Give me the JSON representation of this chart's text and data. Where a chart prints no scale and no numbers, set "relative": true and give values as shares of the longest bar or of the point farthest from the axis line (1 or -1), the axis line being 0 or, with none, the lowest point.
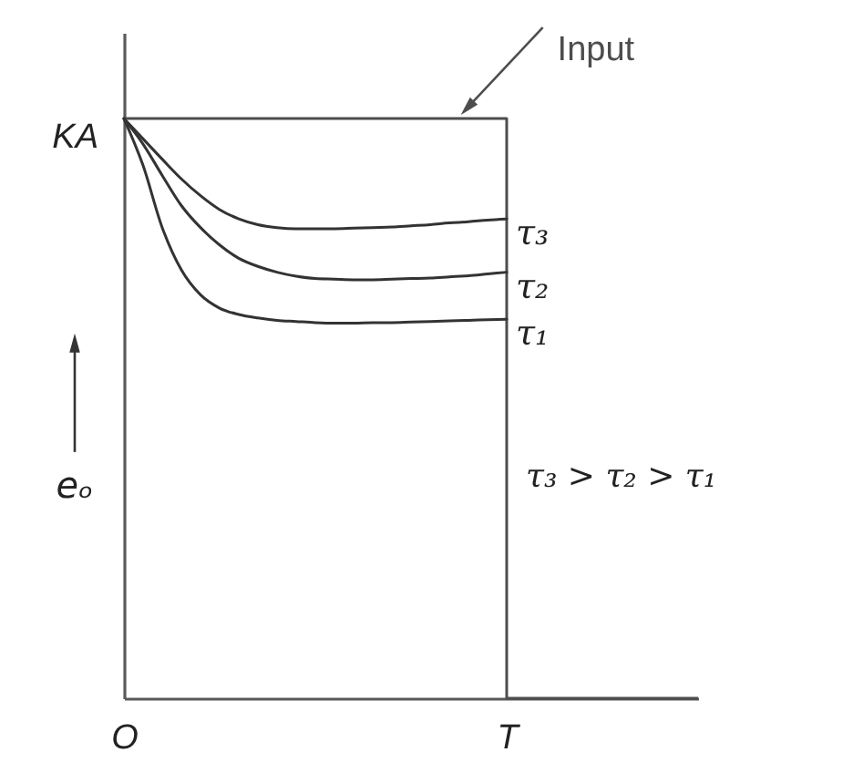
{
  "chart_data": {
    "type": "line",
    "relative": true,
    "ylabel": "eₒ",
    "legend": false,
    "categories": [
      "O",
      null,
      null,
      null,
      null,
      null,
      null,
      null,
      null,
      null,
      null,
      null,
      null,
      null,
      null,
      null,
      null,
      null,
      null,
      null,
      "T",
      null,
      null,
      null,
      null,
      null,
      null,
      null,
      null,
      null,
      null
    ],
    "annotations": [
      {
        "text": "KA",
        "x": "O",
        "y": 1
      },
      "τ₃ > τ₂ > τ₁"
    ],
    "series": [
      {
        "name": "Input",
        "type": "step",
        "color": "#4d4d4d",
        "values": [
          1,
          1,
          1,
          1,
          1,
          1,
          1,
          1,
          1,
          1,
          1,
          1,
          1,
          1,
          1,
          1,
          1,
          1,
          1,
          1,
          0,
          0,
          0,
          0,
          0,
          0,
          0,
          0,
          0,
          0,
          0
        ]
      },
      {
        "name": "τ₃",
        "color": "#333333",
        "values": [
          1,
          0.965,
          0.93,
          0.896,
          0.867,
          0.843,
          0.827,
          0.817,
          0.812,
          0.81,
          0.81,
          0.81,
          0.811,
          0.812,
          0.813,
          0.815,
          0.817,
          0.82,
          0.822,
          0.825,
          0.827,
          null,
          null,
          null,
          null,
          null,
          null,
          null,
          null,
          null,
          null
        ]
      },
      {
        "name": "τ₂",
        "color": "#333333",
        "values": [
          1,
          0.956,
          0.902,
          0.85,
          0.812,
          0.782,
          0.759,
          0.745,
          0.735,
          0.728,
          0.724,
          0.723,
          0.722,
          0.722,
          0.723,
          0.724,
          0.725,
          0.727,
          0.729,
          0.732,
          0.735,
          null,
          null,
          null,
          null,
          null,
          null,
          null,
          null,
          null,
          null
        ]
      },
      {
        "name": "τ₁",
        "color": "#333333",
        "values": [
          1,
          0.919,
          0.812,
          0.739,
          0.696,
          0.673,
          0.662,
          0.656,
          0.652,
          0.65,
          0.648,
          0.647,
          0.647,
          0.648,
          0.648,
          0.649,
          0.65,
          0.651,
          0.652,
          0.653,
          0.654,
          null,
          null,
          null,
          null,
          null,
          null,
          null,
          null,
          null,
          null
        ]
      }
    ]
  }
}
